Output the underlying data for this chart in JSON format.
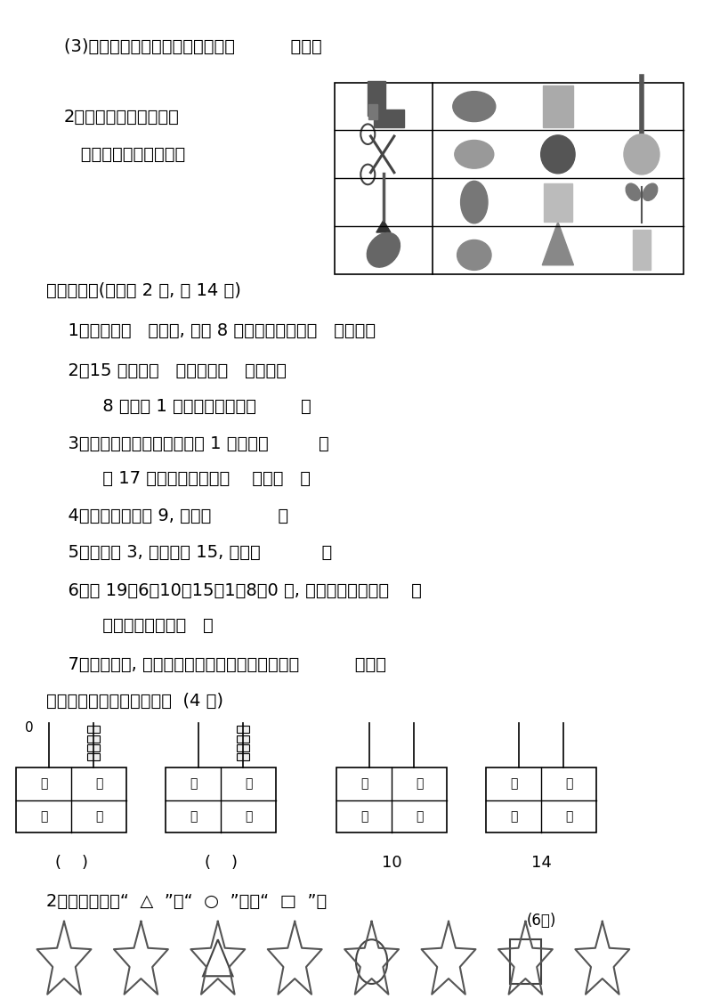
{
  "bg_color": "#ffffff",
  "text_color": "#000000",
  "line1": "(3)站在队列正中的那个小朋友是（          ）号。",
  "sec2_line1": "2、把每一行中和左图有",
  "sec2_line2": "   关的一种物品圈出来。",
  "sec5_title": "五、填空。(每小题 2 分, 共 14 分)",
  "sec5_q1": "  1、我今年（   ）岁了, 再过 8 年上高中时我就（   ）岁了。",
  "sec5_q2a": "  2、15 里面有（   ）个十和（   ）个一；",
  "sec5_q2b": "     8 个一和 1 个十组成的数是（        ）",
  "sec5_q3a": "  3、个位和十位上的数字都是 1 的数是（         ）",
  "sec5_q3b": "     与 17 相邻的两个数是（    ）和（   ）",
  "sec5_q4": "  4、两个加数都是 9, 和是（            ）",
  "sec5_q5": "  5、减数是 3, 被减数是 15, 差是（           ）",
  "sec5_q6a": "  6、在 19、6、10、15、1、8、0 中, 最小的一个数是（    ）",
  "sec5_q6b": "     最大的一个数是（   ）",
  "sec5_q7": "  7、为了安全, 交通规则中规定在路上行走要靠（          ）边。",
  "sec6_title": "六、１、写一写，画一画。  (4 分)",
  "sec6_q2": "  2、根据要求画",
  "page_width": 8.0,
  "page_height": 11.31
}
